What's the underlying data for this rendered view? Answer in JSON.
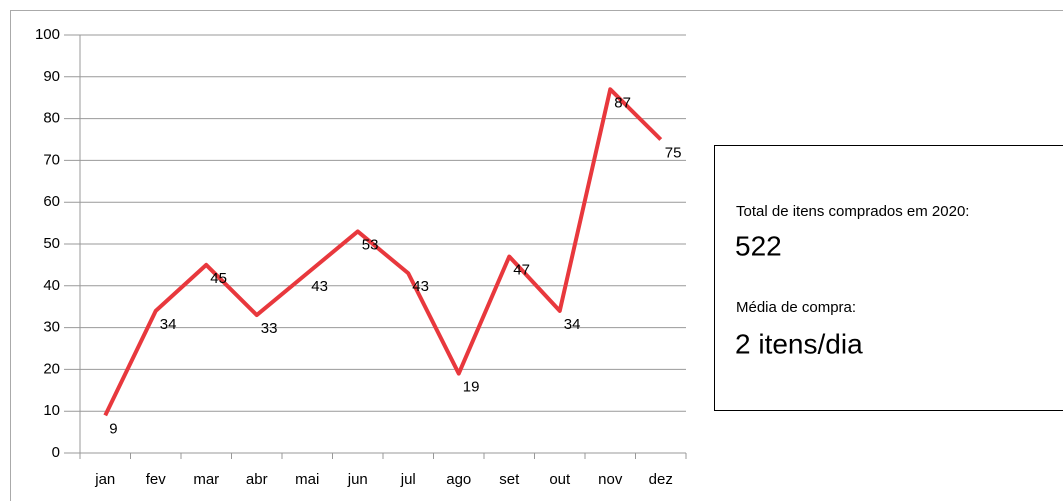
{
  "chart_data": {
    "type": "line",
    "categories": [
      "jan",
      "fev",
      "mar",
      "abr",
      "mai",
      "jun",
      "jul",
      "ago",
      "set",
      "out",
      "nov",
      "dez"
    ],
    "series": [
      {
        "name": "Itens comprados",
        "color": "#e8383d",
        "values": [
          9,
          34,
          45,
          33,
          43,
          53,
          43,
          19,
          47,
          34,
          87,
          75
        ]
      }
    ],
    "ylim": [
      0,
      100
    ],
    "yticks": [
      0,
      10,
      20,
      30,
      40,
      50,
      60,
      70,
      80,
      90,
      100
    ],
    "grid": true,
    "data_labels": true
  },
  "summary": {
    "total_label": "Total de itens comprados em 2020:",
    "total": "522",
    "average_label": "Média de compra:",
    "average": "2 itens/dia"
  }
}
